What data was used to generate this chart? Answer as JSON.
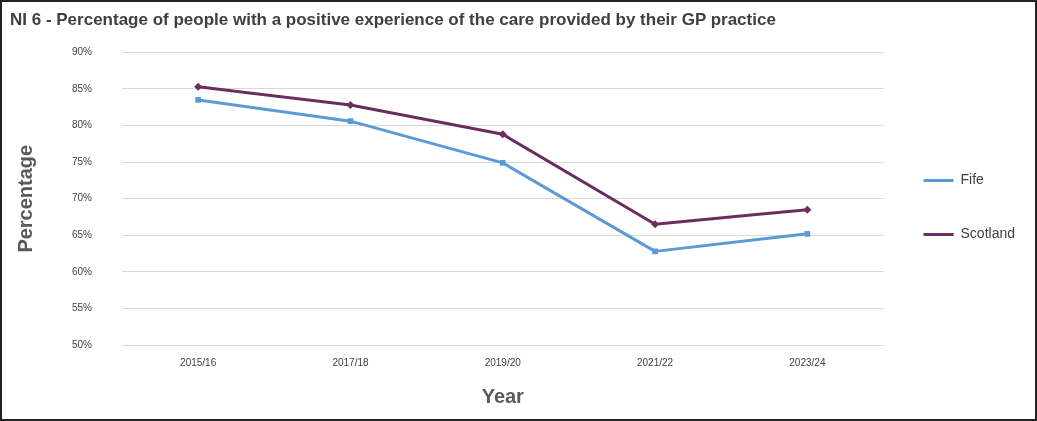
{
  "chart_data": {
    "type": "line",
    "title": "NI 6 - Percentage of people with a positive experience of the care provided by their GP practice",
    "xlabel": "Year",
    "ylabel": "Percentage",
    "categories": [
      "2015/16",
      "2017/18",
      "2019/20",
      "2021/22",
      "2023/24"
    ],
    "series": [
      {
        "name": "Fife",
        "color": "#5b9bd5",
        "marker": "square",
        "values": [
          83.5,
          80.6,
          74.9,
          62.8,
          65.2
        ]
      },
      {
        "name": "Scotland",
        "color": "#6b2c5f",
        "marker": "diamond",
        "values": [
          85.3,
          82.8,
          78.8,
          66.5,
          68.5
        ]
      }
    ],
    "ylim": [
      50,
      90
    ],
    "yticks": [
      {
        "value": 50,
        "label": "50%"
      },
      {
        "value": 55,
        "label": "55%"
      },
      {
        "value": 60,
        "label": "60%"
      },
      {
        "value": 65,
        "label": "65%"
      },
      {
        "value": 70,
        "label": "70%"
      },
      {
        "value": 75,
        "label": "75%"
      },
      {
        "value": 80,
        "label": "80%"
      },
      {
        "value": 85,
        "label": "85%"
      },
      {
        "value": 90,
        "label": "90%"
      }
    ],
    "grid": "y",
    "legend": "right",
    "line_style": "solid"
  }
}
